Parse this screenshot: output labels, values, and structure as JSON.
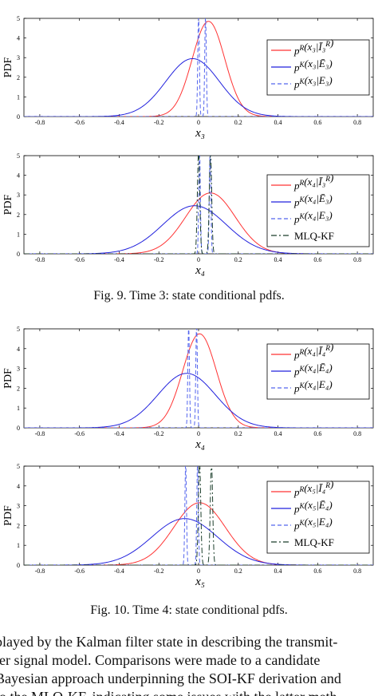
{
  "chart_data": [
    {
      "type": "line",
      "ylabel": "PDF",
      "xlabel": "x₃",
      "xlim": [
        -0.88,
        0.88
      ],
      "ylim": [
        0,
        5
      ],
      "xticks": [
        "-0.8",
        "-0.6",
        "-0.4",
        "-0.2",
        "0",
        "0.2",
        "0.4",
        "0.6",
        "0.8"
      ],
      "yticks": [
        "0",
        "1",
        "2",
        "3",
        "4",
        "5"
      ],
      "legend_position": "top-right",
      "series": [
        {
          "name": "p^R(x₃|Ī₃^R)",
          "color": "#ff3333",
          "style": "solid",
          "kind": "gauss",
          "mu": 0.05,
          "sigma": 0.082,
          "peak": 4.85
        },
        {
          "name": "p^K(x₃|Ē₃)",
          "color": "#2222dd",
          "style": "solid",
          "kind": "gauss",
          "mu": -0.03,
          "sigma": 0.135,
          "peak": 2.95
        },
        {
          "name": "p^K(x₃|E₃)",
          "color": "#5566ee",
          "style": "dashed",
          "kind": "spikes",
          "spikes": [
            {
              "x": 0.0,
              "w": 0.004,
              "peak": 5.2
            },
            {
              "x": 0.035,
              "w": 0.004,
              "peak": 5.2
            }
          ]
        }
      ]
    },
    {
      "type": "line",
      "ylabel": "PDF",
      "xlabel": "x₄",
      "xlim": [
        -0.88,
        0.88
      ],
      "ylim": [
        0,
        5
      ],
      "xticks": [
        "-0.8",
        "-0.6",
        "-0.4",
        "-0.2",
        "0",
        "0.2",
        "0.4",
        "0.6",
        "0.8"
      ],
      "yticks": [
        "0",
        "1",
        "2",
        "3",
        "4",
        "5"
      ],
      "legend_position": "top-right",
      "series": [
        {
          "name": "p^R(x₄|Ī₃^R)",
          "color": "#ff3333",
          "style": "solid",
          "kind": "gauss",
          "mu": 0.06,
          "sigma": 0.125,
          "peak": 3.1
        },
        {
          "name": "p^K(x₄|Ē₃)",
          "color": "#2222dd",
          "style": "solid",
          "kind": "gauss",
          "mu": -0.02,
          "sigma": 0.16,
          "peak": 2.45
        },
        {
          "name": "p^K(x₄|E₃)",
          "color": "#5566ee",
          "style": "dashed",
          "kind": "spikes",
          "spikes": [
            {
              "x": 0.005,
              "w": 0.004,
              "peak": 5.2
            },
            {
              "x": 0.058,
              "w": 0.004,
              "peak": 5.2
            }
          ]
        },
        {
          "name": "MLQ-KF",
          "color": "#1a3d2a",
          "style": "dashdot",
          "kind": "spikes",
          "spikes": [
            {
              "x": 0.0,
              "w": 0.006,
              "peak": 5.2
            },
            {
              "x": 0.06,
              "w": 0.006,
              "peak": 5.2
            }
          ]
        }
      ]
    },
    {
      "type": "line",
      "ylabel": "PDF",
      "xlabel": "x₄",
      "xlim": [
        -0.88,
        0.88
      ],
      "ylim": [
        0,
        5
      ],
      "xticks": [
        "-0.8",
        "-0.6",
        "-0.4",
        "-0.2",
        "0",
        "0.2",
        "0.4",
        "0.6",
        "0.8"
      ],
      "yticks": [
        "0",
        "1",
        "2",
        "3",
        "4",
        "5"
      ],
      "legend_position": "top-right",
      "series": [
        {
          "name": "p^R(x₄|Ī₄^R)",
          "color": "#ff3333",
          "style": "solid",
          "kind": "gauss",
          "mu": 0.005,
          "sigma": 0.085,
          "peak": 4.75
        },
        {
          "name": "p^K(x₄|Ē₄)",
          "color": "#2222dd",
          "style": "solid",
          "kind": "gauss",
          "mu": -0.06,
          "sigma": 0.145,
          "peak": 2.75
        },
        {
          "name": "p^K(x₄|E₄)",
          "color": "#5566ee",
          "style": "dashed",
          "kind": "spikes",
          "spikes": [
            {
              "x": -0.05,
              "w": 0.004,
              "peak": 5.2
            },
            {
              "x": -0.01,
              "w": 0.004,
              "peak": 5.2
            }
          ]
        }
      ]
    },
    {
      "type": "line",
      "ylabel": "PDF",
      "xlabel": "x₅",
      "xlim": [
        -0.88,
        0.88
      ],
      "ylim": [
        0,
        5
      ],
      "xticks": [
        "-0.8",
        "-0.6",
        "-0.4",
        "-0.2",
        "0",
        "0.2",
        "0.4",
        "0.6",
        "0.8"
      ],
      "yticks": [
        "0",
        "1",
        "2",
        "3",
        "4",
        "5"
      ],
      "legend_position": "top-right",
      "series": [
        {
          "name": "p^R(x₅|Ī₄^R)",
          "color": "#ff3333",
          "style": "solid",
          "kind": "gauss",
          "mu": 0.005,
          "sigma": 0.13,
          "peak": 3.15
        },
        {
          "name": "p^K(x₅|Ē₄)",
          "color": "#2222dd",
          "style": "solid",
          "kind": "gauss",
          "mu": -0.07,
          "sigma": 0.165,
          "peak": 2.35
        },
        {
          "name": "p^K(x₅|E₄)",
          "color": "#5566ee",
          "style": "dashed",
          "kind": "spikes",
          "spikes": [
            {
              "x": -0.065,
              "w": 0.004,
              "peak": 5.2
            },
            {
              "x": -0.005,
              "w": 0.004,
              "peak": 5.2
            }
          ]
        },
        {
          "name": "MLQ-KF",
          "color": "#1a3d2a",
          "style": "dashdot",
          "kind": "spikes",
          "spikes": [
            {
              "x": 0.005,
              "w": 0.006,
              "peak": 5.2
            },
            {
              "x": 0.065,
              "w": 0.006,
              "peak": 5.2
            }
          ]
        }
      ]
    }
  ],
  "captions": {
    "fig9": "Fig. 9.  Time 3: state conditional pdfs.",
    "fig10": "Fig. 10.  Time 4: state conditional pdfs."
  },
  "body_text": [
    "played by the Kalman filter state in describing the transmit-",
    "ter signal model. Comparisons were made to a candidate",
    "Bayesian approach underpinning the SOI-KF derivation and",
    "to the MLQ-KF, indicating some issues with the latter meth-"
  ]
}
